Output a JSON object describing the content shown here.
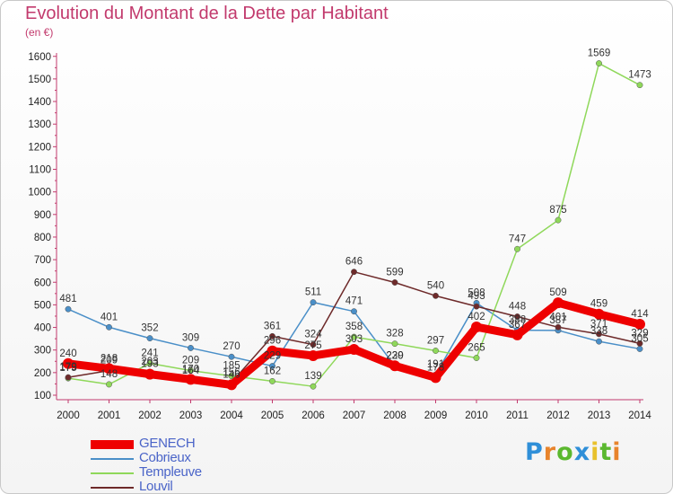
{
  "title": "Evolution du Montant de la Dette par Habitant",
  "subtitle": "(en €)",
  "logo": {
    "text": "Proxiti",
    "letter_colors": [
      "#2f8fd8",
      "#e8842c",
      "#5bb82f",
      "#2f8fd8",
      "#e8c12c",
      "#5bb82f",
      "#e8842c"
    ]
  },
  "chart_data": {
    "type": "line",
    "x": [
      "2000",
      "2001",
      "2002",
      "2003",
      "2004",
      "2005",
      "2006",
      "2007",
      "2008",
      "2009",
      "2010",
      "2011",
      "2012",
      "2013",
      "2014"
    ],
    "ylim": [
      100,
      1600
    ],
    "yticks": [
      100,
      200,
      300,
      400,
      500,
      600,
      700,
      800,
      900,
      1000,
      1100,
      1200,
      1300,
      1400,
      1500,
      1600
    ],
    "grid": false,
    "legend_position": "bottom-left",
    "series": [
      {
        "name": "GENECH",
        "color": "#ee0000",
        "width": 9,
        "values": [
          240,
          218,
          193,
          170,
          146,
          296,
          275,
          303,
          230,
          178,
          402,
          367,
          509,
          459,
          414
        ],
        "labels": [
          "240",
          "218",
          "193",
          "170",
          "146",
          "296",
          "275",
          "303",
          "230",
          "178",
          "402",
          "367",
          "509",
          "459",
          "414"
        ]
      },
      {
        "name": "Cobrieux",
        "color": "#4a8fc8",
        "width": 1.5,
        "values": [
          481,
          401,
          352,
          309,
          270,
          229,
          511,
          471,
          229,
          191,
          508,
          388,
          387,
          338,
          305
        ],
        "labels": [
          "481",
          "401",
          "352",
          "309",
          "270",
          "229",
          "511",
          "471",
          "229",
          "191",
          "508",
          "388",
          "387",
          "338",
          "305"
        ]
      },
      {
        "name": "Templeuve",
        "color": "#8fd85a",
        "width": 1.5,
        "values": [
          175,
          148,
          241,
          209,
          185,
          162,
          139,
          358,
          328,
          297,
          265,
          747,
          875,
          1569,
          1473
        ],
        "labels": [
          "175",
          "148",
          "241",
          "209",
          "185",
          "162",
          "139",
          "358",
          "328",
          "297",
          "265",
          "747",
          "875",
          "1569",
          "1473"
        ]
      },
      {
        "name": "Louvil",
        "color": "#6e2a2a",
        "width": 1.5,
        "values": [
          179,
          209,
          203,
          164,
          156,
          361,
          324,
          646,
          599,
          540,
          493,
          448,
          401,
          371,
          329
        ],
        "labels": [
          "179",
          "209",
          "203",
          "164",
          "156",
          "361",
          "324",
          "646",
          "599",
          "540",
          "493",
          "448",
          "401",
          "371",
          "329"
        ]
      }
    ]
  }
}
